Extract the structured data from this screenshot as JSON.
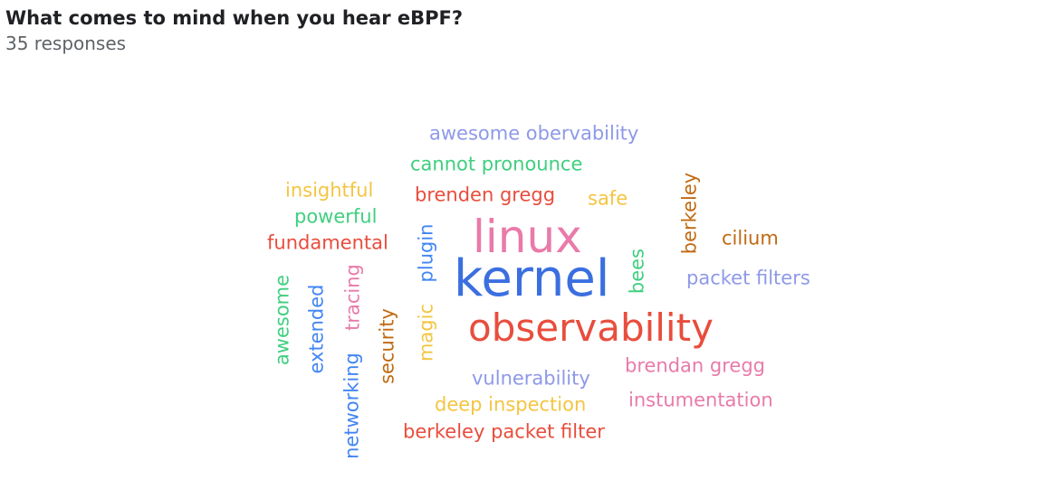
{
  "form": {
    "question": "What comes to mind when you hear eBPF?",
    "response_count": "35 responses"
  },
  "word_cloud": {
    "words": {
      "awesome_obervability": "awesome obervability",
      "cannot_pronounce": "cannot pronounce",
      "insightful": "insightful",
      "brenden_gregg": "brenden gregg",
      "safe": "safe",
      "berkeley": "berkeley",
      "powerful": "powerful",
      "fundamental": "fundamental",
      "linux": "linux",
      "cilium": "cilium",
      "plugin": "plugin",
      "kernel": "kernel",
      "bees": "bees",
      "packet_filters": "packet filters",
      "awesome": "awesome",
      "extended": "extended",
      "tracing": "tracing",
      "security": "security",
      "magic": "magic",
      "observability": "observability",
      "brendan_gregg": "brendan gregg",
      "vulnerability": "vulnerability",
      "networking": "networking",
      "deep_inspection": "deep inspection",
      "instumentation": "instumentation",
      "berkeley_packet_filter": "berkeley packet filter"
    },
    "colors": {
      "blue": "#4285f4",
      "red": "#e84d3d",
      "pink": "#e97aa9",
      "green": "#3fcf7f",
      "yellow": "#f4c542",
      "brown": "#c06a12",
      "lavender": "#8e99e8"
    }
  }
}
